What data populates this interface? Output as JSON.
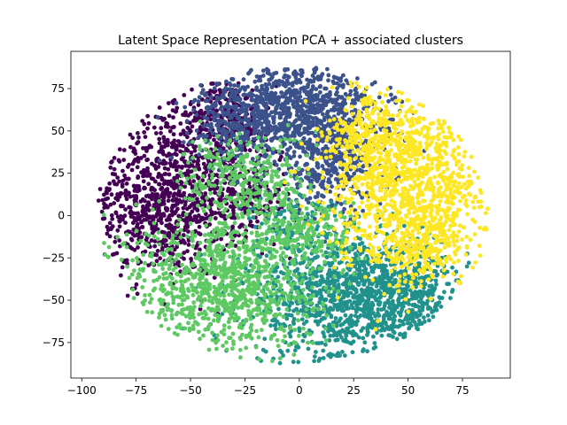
{
  "chart_data": {
    "type": "scatter",
    "title": "Latent Space Representation PCA + associated clusters",
    "xlabel": "",
    "ylabel": "",
    "xlim": [
      -105,
      97
    ],
    "ylim": [
      -96,
      97
    ],
    "xticks": [
      -100,
      -75,
      -50,
      -25,
      0,
      25,
      50,
      75
    ],
    "yticks": [
      -75,
      -50,
      -25,
      0,
      25,
      50,
      75
    ],
    "grid": false,
    "legend": "none",
    "series": [
      {
        "color": "#440154",
        "regions": [
          {
            "center": [
              -62,
              8
            ],
            "spread": [
              18,
              22
            ],
            "count": 900
          },
          {
            "center": [
              -38,
              58
            ],
            "spread": [
              14,
              12
            ],
            "count": 280
          },
          {
            "center": [
              -25,
              15
            ],
            "spread": [
              10,
              14
            ],
            "count": 200
          }
        ]
      },
      {
        "color": "#3b528b",
        "regions": [
          {
            "center": [
              -5,
              62
            ],
            "spread": [
              20,
              16
            ],
            "count": 900
          },
          {
            "center": [
              15,
              35
            ],
            "spread": [
              14,
              18
            ],
            "count": 450
          },
          {
            "center": [
              -30,
              55
            ],
            "spread": [
              10,
              12
            ],
            "count": 150
          }
        ]
      },
      {
        "color": "#21918c",
        "regions": [
          {
            "center": [
              20,
              -48
            ],
            "spread": [
              22,
              20
            ],
            "count": 1000
          },
          {
            "center": [
              45,
              -45
            ],
            "spread": [
              15,
              15
            ],
            "count": 420
          },
          {
            "center": [
              -5,
              -5
            ],
            "spread": [
              8,
              8
            ],
            "count": 80
          }
        ]
      },
      {
        "color": "#5ec962",
        "regions": [
          {
            "center": [
              -35,
              -40
            ],
            "spread": [
              22,
              20
            ],
            "count": 1000
          },
          {
            "center": [
              -25,
              20
            ],
            "spread": [
              14,
              14
            ],
            "count": 320
          },
          {
            "center": [
              5,
              -10
            ],
            "spread": [
              12,
              10
            ],
            "count": 180
          }
        ]
      },
      {
        "color": "#fde725",
        "regions": [
          {
            "center": [
              52,
              18
            ],
            "spread": [
              18,
              26
            ],
            "count": 1100
          },
          {
            "center": [
              35,
              45
            ],
            "spread": [
              12,
              12
            ],
            "count": 250
          },
          {
            "center": [
              55,
              -20
            ],
            "spread": [
              10,
              10
            ],
            "count": 150
          }
        ]
      }
    ]
  }
}
